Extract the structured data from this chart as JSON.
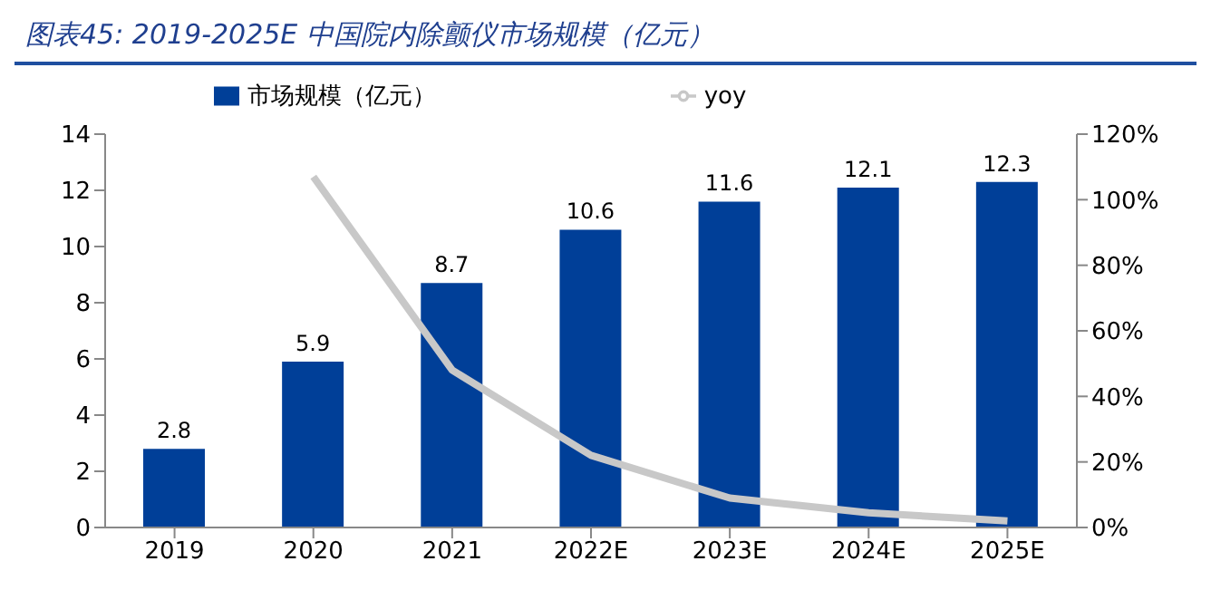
{
  "chart_data": {
    "type": "bar",
    "title": "图表45:  2019-2025E 中国院内除颤仪市场规模（亿元）",
    "categories": [
      "2019",
      "2020",
      "2021",
      "2022E",
      "2023E",
      "2024E",
      "2025E"
    ],
    "series": [
      {
        "name": "市场规模（亿元）",
        "color": "#003f98",
        "values": [
          2.8,
          5.9,
          8.7,
          10.6,
          11.6,
          12.1,
          12.3
        ],
        "value_labels": [
          "2.8",
          "5.9",
          "8.7",
          "10.6",
          "11.6",
          "12.1",
          "12.3"
        ]
      },
      {
        "name": "yoy",
        "type": "line",
        "axis": "y2",
        "color": "#c8c8c8",
        "values": [
          null,
          107,
          48,
          22,
          9,
          4.5,
          2
        ]
      }
    ],
    "ylim": [
      0,
      14
    ],
    "yticks": [
      0,
      2,
      4,
      6,
      8,
      10,
      12,
      14
    ],
    "y2lim": [
      0,
      120
    ],
    "y2ticks": [
      {
        "value": 0,
        "label": "0%"
      },
      {
        "value": 20,
        "label": "20%"
      },
      {
        "value": 40,
        "label": "40%"
      },
      {
        "value": 60,
        "label": "60%"
      },
      {
        "value": 80,
        "label": "80%"
      },
      {
        "value": 100,
        "label": "100%"
      },
      {
        "value": 120,
        "label": "120%"
      }
    ],
    "grid": false,
    "legend": "top",
    "marker": "none"
  }
}
